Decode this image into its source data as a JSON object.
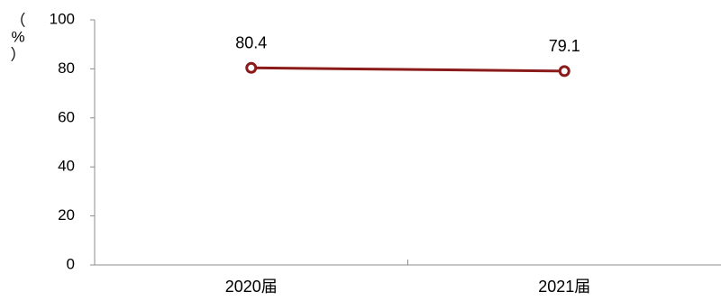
{
  "chart_data": {
    "type": "line",
    "categories": [
      "2020届",
      "2021届"
    ],
    "series": [
      {
        "values": [
          80.4,
          79.1
        ]
      }
    ],
    "data_labels": [
      "80.4",
      "79.1"
    ],
    "ylabel": "（%）",
    "ylabel_chars": [
      "（",
      "%",
      "）"
    ],
    "ylim": [
      0,
      100
    ],
    "yticks": [
      0,
      20,
      40,
      60,
      80,
      100
    ],
    "ytick_labels": [
      "0",
      "20",
      "40",
      "60",
      "80",
      "100"
    ],
    "grid": false,
    "legend": "none",
    "line_color": "#8B1A1A",
    "marker_fill": "#ffffff"
  }
}
